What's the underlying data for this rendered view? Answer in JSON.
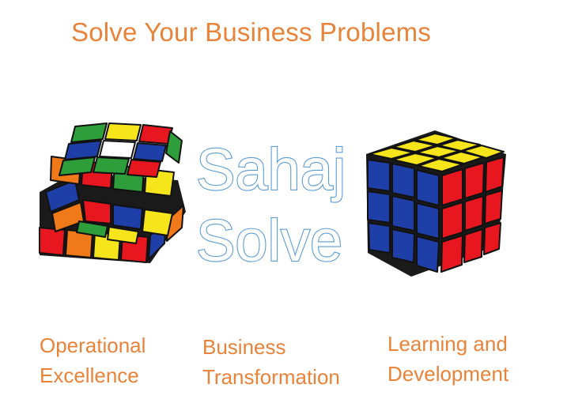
{
  "slide": {
    "headline": "Solve Your Business Problems",
    "logo": {
      "line1": "Sahaj",
      "line2": "Solve"
    },
    "captions": [
      {
        "line1": "Operational",
        "line2": "Excellence"
      },
      {
        "line1": "Business",
        "line2": "Transformation"
      },
      {
        "line1": "Learning and",
        "line2": "Development"
      }
    ]
  },
  "colors": {
    "accent": "#E8833A",
    "logo_outline": "#5B9BD5"
  },
  "images": {
    "left": "scrambled-rubiks-cube",
    "right": "solved-rubiks-cube"
  }
}
